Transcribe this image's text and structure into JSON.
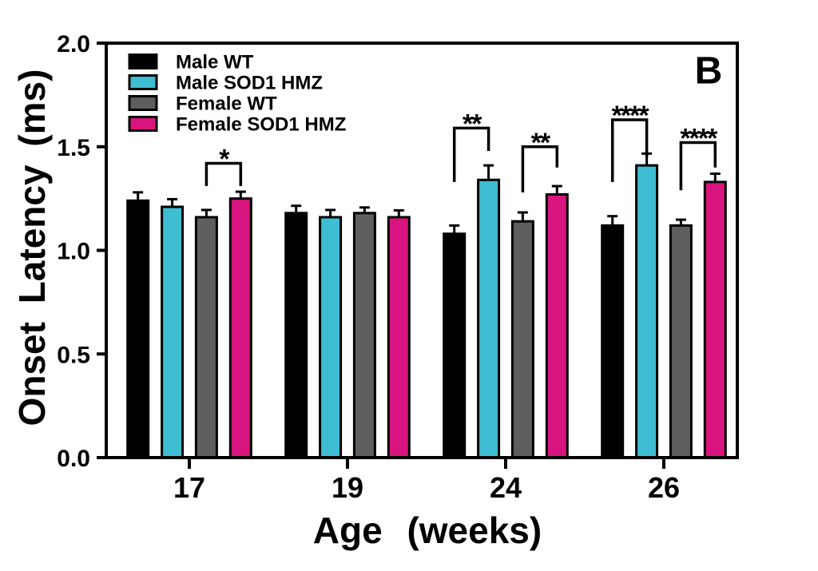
{
  "panel_label": "B",
  "chart_data": {
    "type": "bar",
    "title": "",
    "xlabel": "Age (weeks)",
    "ylabel": "Onset Latency (ms)",
    "ylim": [
      0.0,
      2.0
    ],
    "yticks": [
      "0.0",
      "0.5",
      "1.0",
      "1.5",
      "2.0"
    ],
    "categories": [
      "17",
      "19",
      "24",
      "26"
    ],
    "grid": false,
    "frame": true,
    "background_color": "#FFFFFF",
    "axis_color": "#000000",
    "error_bar_style": "upper SEM with cap",
    "legend_position": "top-left inside plot",
    "series": [
      {
        "name": "Male WT",
        "color": "#000000",
        "values": [
          1.24,
          1.18,
          1.08,
          1.12
        ],
        "sem": [
          0.04,
          0.035,
          0.04,
          0.045
        ]
      },
      {
        "name": "Male SOD1 HMZ",
        "color": "#3FBDD2",
        "values": [
          1.21,
          1.16,
          1.34,
          1.41
        ],
        "sem": [
          0.037,
          0.035,
          0.07,
          0.057
        ]
      },
      {
        "name": "Female WT",
        "color": "#5E5E5E",
        "values": [
          1.16,
          1.18,
          1.14,
          1.12
        ],
        "sem": [
          0.035,
          0.027,
          0.043,
          0.028
        ]
      },
      {
        "name": "Female SOD1 HMZ",
        "color": "#D8157F",
        "values": [
          1.25,
          1.16,
          1.27,
          1.33
        ],
        "sem": [
          0.033,
          0.033,
          0.04,
          0.04
        ]
      }
    ],
    "significance": [
      {
        "category": "17",
        "from": "Female WT",
        "to": "Female SOD1 HMZ",
        "stars": "*",
        "top": 1.42,
        "left_end": 1.31,
        "right_end": 1.31
      },
      {
        "category": "24",
        "from": "Male WT",
        "to": "Male SOD1 HMZ",
        "stars": "**",
        "top": 1.59,
        "left_end": 1.33,
        "right_end": 1.48
      },
      {
        "category": "24",
        "from": "Female WT",
        "to": "Female SOD1 HMZ",
        "stars": "**",
        "top": 1.5,
        "left_end": 1.28,
        "right_end": 1.4
      },
      {
        "category": "26",
        "from": "Male WT",
        "to": "Male SOD1 HMZ",
        "stars": "****",
        "top": 1.63,
        "left_end": 1.33,
        "right_end": 1.45
      },
      {
        "category": "26",
        "from": "Female WT",
        "to": "Female SOD1 HMZ",
        "stars": "****",
        "top": 1.52,
        "left_end": 1.29,
        "right_end": 1.4
      }
    ]
  }
}
